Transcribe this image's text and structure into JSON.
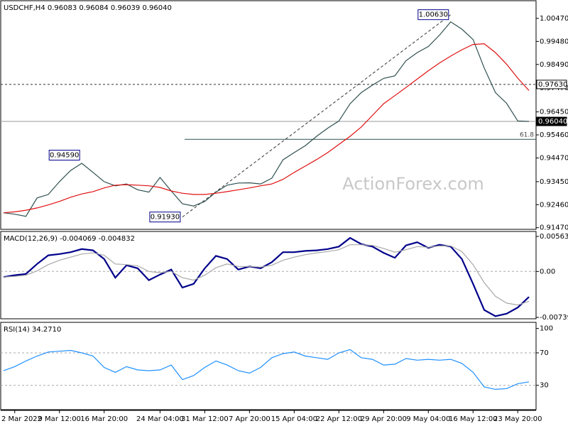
{
  "chart_data": [
    {
      "type": "line",
      "title": "USDCHF,H4  0.96083 0.96084 0.96039 0.96040",
      "watermark": "ActionForex.com",
      "categories": [
        null,
        "2 Mar 2022",
        null,
        null,
        null,
        "9 Mar 12:00",
        null,
        null,
        null,
        "16 Mar 20:00",
        null,
        null,
        null,
        null,
        "24 Mar 04:00",
        null,
        null,
        null,
        "31 Mar 12:00",
        null,
        null,
        null,
        "7 Apr 20:00",
        null,
        null,
        null,
        "15 Apr 04:00",
        null,
        null,
        null,
        "22 Apr 12:00",
        null,
        null,
        null,
        "29 Apr 20:00",
        null,
        null,
        null,
        "9 May 04:00",
        null,
        null,
        null,
        "16 May 12:00",
        null,
        null,
        null,
        "23 May 20:00",
        null
      ],
      "series": [
        {
          "color": "#2f4f4f",
          "values": [
            0.9211,
            0.9205,
            0.9196,
            0.9275,
            0.929,
            0.9345,
            0.9393,
            0.9424,
            0.9385,
            0.9345,
            0.9327,
            0.9335,
            0.931,
            0.93,
            0.9363,
            0.9305,
            0.925,
            0.924,
            0.926,
            0.93,
            0.933,
            0.9339,
            0.934,
            0.9335,
            0.936,
            0.9439,
            0.947,
            0.95,
            0.954,
            0.9575,
            0.9606,
            0.968,
            0.9728,
            0.976,
            0.9789,
            0.98,
            0.9865,
            0.99,
            0.9926,
            0.9975,
            1.0032,
            1.0001,
            0.9956,
            0.9834,
            0.9728,
            0.9682,
            0.9606,
            0.9604
          ]
        },
        {
          "color": "#e01010",
          "values": [
            0.9211,
            0.9215,
            0.9222,
            0.9232,
            0.9245,
            0.926,
            0.9278,
            0.9292,
            0.9302,
            0.9318,
            0.933,
            0.9332,
            0.933,
            0.9327,
            0.932,
            0.9305,
            0.9295,
            0.929,
            0.929,
            0.9295,
            0.9302,
            0.931,
            0.9318,
            0.9327,
            0.9335,
            0.9355,
            0.9385,
            0.9412,
            0.944,
            0.947,
            0.9505,
            0.954,
            0.958,
            0.963,
            0.968,
            0.9715,
            0.975,
            0.9786,
            0.9822,
            0.9855,
            0.9885,
            0.9912,
            0.9935,
            0.9938,
            0.99,
            0.985,
            0.979,
            0.9737
          ]
        }
      ],
      "ylim": [
        0.914,
        1.012
      ],
      "yticks": [
        {
          "value": 1.0047,
          "label": "1.00470"
        },
        {
          "value": 0.9948,
          "label": "0.99480"
        },
        {
          "value": 0.9849,
          "label": "0.98490"
        },
        {
          "value": 0.9747,
          "label": "0.97470"
        },
        {
          "value": 0.9645,
          "label": "0.96450"
        },
        {
          "value": 0.9546,
          "label": "0.95460"
        },
        {
          "value": 0.9447,
          "label": "0.94470"
        },
        {
          "value": 0.9345,
          "label": "0.93450"
        },
        {
          "value": 0.9246,
          "label": "0.92460"
        },
        {
          "value": 0.9147,
          "label": "0.91470"
        }
      ],
      "levels": [
        {
          "value": 0.9763,
          "label": "0.97630",
          "style": "dashed"
        },
        {
          "value": 0.9604,
          "label": "0.96040",
          "style": "current"
        }
      ],
      "fib": {
        "value": 0.9527,
        "label": "61.8"
      },
      "trendline": [
        {
          "index": 16,
          "value": 0.9193
        },
        {
          "index": 40,
          "value": 1.0063
        }
      ],
      "annotations": [
        {
          "index": 40,
          "value": 1.0063,
          "label": "1.00630"
        },
        {
          "index": 7,
          "value": 0.9459,
          "label": "0.94590"
        },
        {
          "index": 16,
          "value": 0.9193,
          "label": "0.91930"
        }
      ]
    },
    {
      "type": "line",
      "title": "MACD(12,26,9) -0.004069 -0.004832",
      "series": [
        {
          "color": "#00008b",
          "values": [
            -0.0009,
            -0.0006,
            -0.0004,
            0.0012,
            0.0026,
            0.0028,
            0.0031,
            0.0036,
            0.0034,
            0.002,
            -0.001,
            0.001,
            0.0005,
            -0.0014,
            -0.0005,
            0.0003,
            -0.0026,
            -0.002,
            0.0005,
            0.0025,
            0.002,
            0.0003,
            0.0008,
            0.0005,
            0.0015,
            0.0031,
            0.0031,
            0.0033,
            0.0034,
            0.0036,
            0.004,
            0.0054,
            0.0044,
            0.004,
            0.003,
            0.0022,
            0.0042,
            0.0047,
            0.0038,
            0.0043,
            0.004,
            0.002,
            -0.002,
            -0.0062,
            -0.0072,
            -0.0068,
            -0.0058,
            -0.0041
          ]
        },
        {
          "color": "#a8a8a8",
          "values": [
            -0.0009,
            -0.0008,
            -0.0006,
            0.0001,
            0.0011,
            0.0018,
            0.0023,
            0.0028,
            0.003,
            0.0026,
            0.0012,
            0.0011,
            0.0009,
            0,
            -0.0002,
            0,
            -0.001,
            -0.0014,
            -0.0006,
            0.0006,
            0.0012,
            0.0008,
            0.0008,
            0.0007,
            0.001,
            0.0018,
            0.0023,
            0.0027,
            0.003,
            0.0032,
            0.0035,
            0.0043,
            0.0043,
            0.0042,
            0.0037,
            0.0031,
            0.0035,
            0.004,
            0.0039,
            0.0041,
            0.0041,
            0.0032,
            0.0011,
            -0.0018,
            -0.004,
            -0.0051,
            -0.0054,
            -0.0048
          ]
        }
      ],
      "ylim": [
        -0.00762,
        0.00632
      ],
      "yticks": [
        0.005632,
        {
          "value": 0,
          "label": "0.00"
        },
        -0.007395
      ],
      "levels": [
        0
      ]
    },
    {
      "type": "line",
      "title": "RSI(14) 34.2710",
      "series": [
        {
          "color": "#1e90ff",
          "values": [
            48,
            53,
            60,
            66,
            71,
            72,
            73,
            70,
            66,
            52,
            46,
            53,
            49,
            48,
            49,
            55,
            37,
            42,
            52,
            60,
            55,
            48,
            45,
            52,
            64,
            69,
            71,
            66,
            64,
            62,
            70,
            74,
            64,
            62,
            55,
            56,
            63,
            61,
            62,
            61,
            62,
            57,
            46,
            28,
            25,
            26,
            32,
            34.271
          ]
        }
      ],
      "ylim": [
        0,
        106.7
      ],
      "yticks": [
        100,
        70,
        30
      ],
      "levels": [
        70,
        30
      ]
    }
  ]
}
